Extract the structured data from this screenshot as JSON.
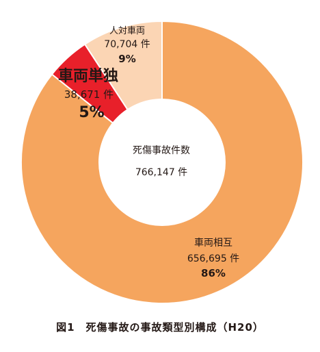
{
  "chart_data": {
    "type": "pie",
    "style": "donut",
    "title": "図1　死傷事故の事故類型別構成（H20）",
    "center": {
      "label": "死傷事故件数",
      "value": "766,147 件"
    },
    "slices": [
      {
        "name": "車両相互",
        "value": 656695,
        "count_label": "656,695 件",
        "percent_label": "86%",
        "color": "#F5A55E"
      },
      {
        "name": "車両単独",
        "value": 38671,
        "count_label": "38,671 件",
        "percent_label": "5%",
        "color": "#E8202A"
      },
      {
        "name": "人対車両",
        "value": 70704,
        "count_label": "70,704 件",
        "percent_label": "9%",
        "color": "#FBD5B4"
      }
    ]
  }
}
